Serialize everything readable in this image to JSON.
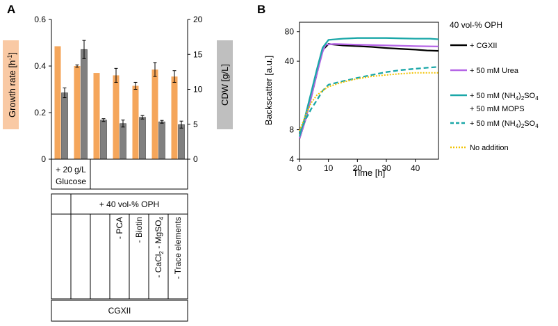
{
  "colors": {
    "growth": "#f5a65b",
    "cdw": "#808080",
    "growth_label_bg": "#f9c9a4",
    "cdw_label_bg": "#bfbfbf",
    "cgxii": "#000000",
    "urea": "#b565e6",
    "nh4so4_mops": "#1aa7a8",
    "nh4so4": "#1aa7a8",
    "no_addition": "#f2c200"
  },
  "chart_data": [
    {
      "panel": "A",
      "type": "bar",
      "ylabel_left": "Growth rate [h",
      "ylabel_left_sup": "-1",
      "ylabel_left_end": "]",
      "ylabel_right": "CDW [g/L]",
      "ylim_left": [
        0,
        0.6
      ],
      "ylim_right": [
        0,
        20
      ],
      "yticks_left": [
        "0",
        "0.2",
        "0.4",
        "0.6"
      ],
      "yticks_right": [
        "0",
        "5",
        "10",
        "15",
        "20"
      ],
      "series": [
        {
          "name": "Growth rate",
          "axis": "left",
          "values": [
            0.485,
            0.4,
            0.37,
            0.36,
            0.315,
            0.385,
            0.355
          ],
          "errors": [
            0.0,
            0.005,
            0.0,
            0.03,
            0.015,
            0.03,
            0.025
          ]
        },
        {
          "name": "CDW",
          "axis": "right",
          "values": [
            9.5,
            15.7,
            5.6,
            5.1,
            6.0,
            5.35,
            4.95
          ],
          "errors": [
            0.7,
            1.3,
            0.2,
            0.5,
            0.25,
            0.2,
            0.5
          ]
        }
      ],
      "table": {
        "row1_glucose": "+ 20 g/L Glucose",
        "row2_oph": "+ 40 vol-% OPH",
        "row3_labels": [
          "- PCA",
          "- Biotin",
          "- CaCl",
          "- Trace elements"
        ],
        "row3_cacl": {
          "a": "- CaCl",
          "b": "2",
          "c": " - MgSO",
          "d": "4"
        },
        "row4": "CGXII"
      }
    },
    {
      "panel": "B",
      "type": "line",
      "title": "40 vol-% OPH",
      "xlabel": "Time [h]",
      "ylabel": "Backscatter [a.u.]",
      "xlim": [
        0,
        48
      ],
      "ylim_log": [
        4,
        100
      ],
      "xticks": [
        "0",
        "10",
        "20",
        "30",
        "40"
      ],
      "yticks": [
        "4",
        "8",
        "40",
        "80"
      ],
      "series": [
        {
          "name": "+ CGXII",
          "key": "cgxii",
          "x": [
            0,
            2,
            4,
            6,
            8,
            10,
            15,
            20,
            25,
            30,
            35,
            40,
            44,
            48
          ],
          "y": [
            6.5,
            10,
            17,
            30,
            52,
            60,
            58,
            57,
            56,
            54.5,
            53.5,
            52.5,
            51.5,
            51
          ]
        },
        {
          "name": "+ 50 mM Urea",
          "key": "urea",
          "x": [
            0,
            2,
            4,
            6,
            8,
            9,
            12,
            20,
            30,
            40,
            48
          ],
          "y": [
            6.5,
            10,
            17,
            30,
            50,
            59,
            60,
            59,
            58,
            57,
            56.5
          ]
        },
        {
          "name": "+ 50 mM (NH4)2SO4 + 50 mM MOPS",
          "key": "nh4so4_mops",
          "x": [
            0,
            2,
            4,
            6,
            8,
            10,
            15,
            20,
            25,
            30,
            35,
            40,
            45,
            48
          ],
          "y": [
            6.8,
            11,
            19,
            33,
            55,
            66,
            68,
            69,
            69,
            69,
            68.5,
            68,
            68,
            67
          ]
        },
        {
          "name": "+ 50 mM (NH4)2SO4",
          "key": "nh4so4",
          "x": [
            0,
            2,
            4,
            6,
            8,
            10,
            15,
            20,
            25,
            30,
            35,
            40,
            45,
            48
          ],
          "y": [
            7.5,
            10,
            13,
            16,
            20,
            23,
            25,
            27,
            29,
            31,
            32.5,
            33.5,
            34.5,
            35
          ]
        },
        {
          "name": "No addition",
          "key": "no_addition",
          "x": [
            0,
            2,
            4,
            6,
            8,
            10,
            15,
            20,
            25,
            30,
            35,
            40,
            45,
            48
          ],
          "y": [
            7.8,
            11,
            15,
            18,
            20,
            22,
            24.5,
            26.5,
            28,
            29,
            29.8,
            30.5,
            30.5,
            30.5
          ]
        }
      ],
      "legend": {
        "cgxii": "+ CGXII",
        "urea": "+ 50 mM Urea",
        "nh4_a": "+ 50 mM (NH",
        "nh4_b": "4",
        "nh4_c": ")",
        "nh4_d": "2",
        "nh4_e": "SO",
        "nh4_f": "4",
        "mops": "+ 50 mM MOPS",
        "no_addition": "No addition"
      }
    }
  ]
}
